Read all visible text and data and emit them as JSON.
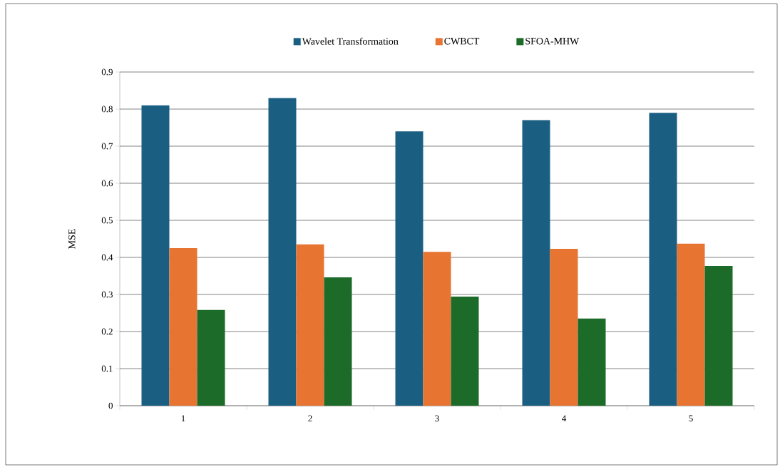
{
  "chart_data": {
    "type": "bar",
    "categories": [
      "1",
      "2",
      "3",
      "4",
      "5"
    ],
    "ylabel": "MSE",
    "series": [
      {
        "name": "Wavelet Transformation",
        "color": "#1a5f82",
        "values": [
          0.81,
          0.83,
          0.74,
          0.77,
          0.79
        ]
      },
      {
        "name": "CWBCT",
        "color": "#e87432",
        "values": [
          0.425,
          0.435,
          0.415,
          0.423,
          0.437
        ]
      },
      {
        "name": "SFOA-MHW",
        "color": "#1c6b28",
        "values": [
          0.258,
          0.346,
          0.294,
          0.235,
          0.377
        ]
      }
    ],
    "ylim": [
      0,
      0.9
    ],
    "yticks": [
      0,
      0.1,
      0.2,
      0.3,
      0.4,
      0.5,
      0.6,
      0.7,
      0.8,
      0.9
    ],
    "grid": "y",
    "legend": "top"
  }
}
